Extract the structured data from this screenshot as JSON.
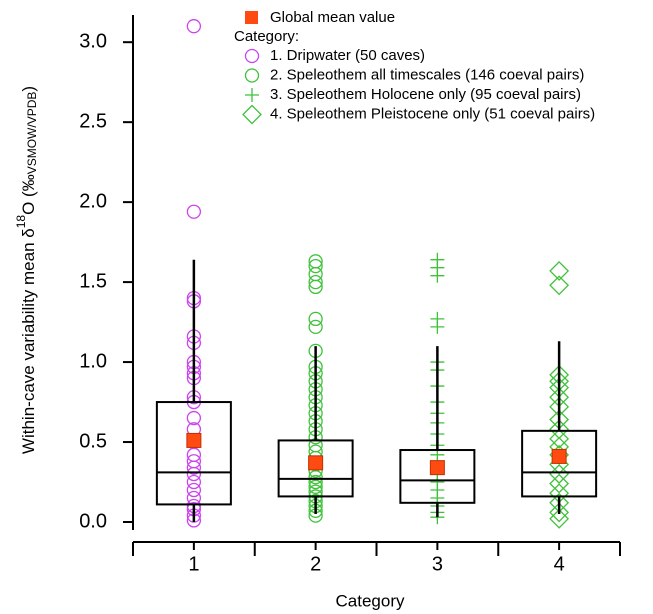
{
  "chart_data": {
    "type": "box",
    "ylabel_parts": [
      "Within-cave variability mean δ",
      "18",
      "O (‰",
      "VSMOW/VPDB",
      ")"
    ],
    "xlabel": "Category",
    "categories": [
      "1",
      "2",
      "3",
      "4"
    ],
    "ylim": [
      -0.05,
      3.17
    ],
    "yticks": [
      {
        "value": 0,
        "label": "0.0"
      },
      0.5,
      {
        "value": 1,
        "label": "1.0"
      },
      1.5,
      {
        "value": 2,
        "label": "2.0"
      },
      2.5,
      {
        "value": 3,
        "label": "3.0"
      }
    ],
    "legend_title": "Category:",
    "mean_name": "Global mean value",
    "mean_color": "#ff4a12",
    "means": [
      0.51,
      0.37,
      0.34,
      0.41
    ],
    "boxes": [
      {
        "whisker_low": 0.0,
        "q1": 0.11,
        "median": 0.31,
        "q3": 0.75,
        "whisker_high": 1.64
      },
      {
        "whisker_low": 0.05,
        "q1": 0.16,
        "median": 0.27,
        "q3": 0.51,
        "whisker_high": 1.1
      },
      {
        "whisker_low": 0.03,
        "q1": 0.12,
        "median": 0.26,
        "q3": 0.45,
        "whisker_high": 1.1
      },
      {
        "whisker_low": 0.05,
        "q1": 0.16,
        "median": 0.31,
        "q3": 0.57,
        "whisker_high": 1.13
      }
    ],
    "series": [
      {
        "name": "1. Dripwater (50 caves)",
        "color": "#cc44ee",
        "marker": "circle",
        "values": [
          3.1,
          1.94,
          1.4,
          1.38,
          1.16,
          1.12,
          1.0,
          0.97,
          0.93,
          0.9,
          0.78,
          0.75,
          0.65,
          0.58,
          0.5,
          0.42,
          0.38,
          0.34,
          0.3,
          0.25,
          0.2,
          0.15,
          0.1,
          0.08,
          0.04,
          0.01
        ]
      },
      {
        "name": "2. Speleothem all timescales (146 coeval pairs)",
        "color": "#3fc23a",
        "marker": "circle",
        "values": [
          1.63,
          1.6,
          1.55,
          1.5,
          1.47,
          1.27,
          1.22,
          1.07,
          0.97,
          0.93,
          0.88,
          0.83,
          0.78,
          0.73,
          0.68,
          0.63,
          0.58,
          0.53,
          0.48,
          0.44,
          0.4,
          0.36,
          0.32,
          0.28,
          0.25,
          0.22,
          0.19,
          0.16,
          0.13,
          0.1,
          0.07,
          0.04
        ]
      },
      {
        "name": "3. Speleothem Holocene only (95 coeval pairs)",
        "color": "#3fc23a",
        "marker": "plus",
        "values": [
          1.64,
          1.59,
          1.54,
          1.27,
          1.22,
          1.0,
          0.95,
          0.85,
          0.75,
          0.68,
          0.62,
          0.55,
          0.48,
          0.42,
          0.36,
          0.3,
          0.25,
          0.2,
          0.15,
          0.1,
          0.06,
          0.03
        ]
      },
      {
        "name": "4. Speleothem Pleistocene only (51 coeval pairs)",
        "color": "#3fc23a",
        "marker": "diamond",
        "values": [
          1.57,
          1.48,
          0.92,
          0.88,
          0.84,
          0.78,
          0.72,
          0.64,
          0.58,
          0.52,
          0.47,
          0.42,
          0.36,
          0.3,
          0.24,
          0.18,
          0.12,
          0.06,
          0.02
        ]
      }
    ]
  }
}
